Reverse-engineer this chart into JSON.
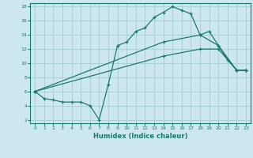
{
  "xlabel": "Humidex (Indice chaleur)",
  "bg_color": "#cce8ee",
  "grid_color": "#aacfd8",
  "line_color": "#1a7a6a",
  "xlim": [
    -0.5,
    23.5
  ],
  "ylim": [
    1.5,
    18.5
  ],
  "xticks": [
    0,
    1,
    2,
    3,
    4,
    5,
    6,
    7,
    8,
    9,
    10,
    11,
    12,
    13,
    14,
    15,
    16,
    17,
    18,
    19,
    20,
    21,
    22,
    23
  ],
  "yticks": [
    2,
    4,
    6,
    8,
    10,
    12,
    14,
    16,
    18
  ],
  "line1_x": [
    0,
    1,
    2,
    3,
    4,
    5,
    6,
    7,
    8,
    9,
    10,
    11,
    12,
    13,
    14,
    15,
    16,
    17,
    18,
    19,
    20,
    21,
    22,
    23
  ],
  "line1_y": [
    6,
    5,
    4.8,
    4.5,
    4.5,
    4.5,
    4,
    2,
    7,
    12.5,
    13,
    14.5,
    15,
    16.5,
    17.2,
    18,
    17.5,
    17,
    14,
    14.5,
    12.5,
    10.5,
    9,
    9
  ],
  "line2_x": [
    0,
    14,
    18,
    20,
    22,
    23
  ],
  "line2_y": [
    6,
    13,
    14,
    12.5,
    9,
    9
  ],
  "line3_x": [
    0,
    14,
    18,
    20,
    22,
    23
  ],
  "line3_y": [
    6,
    11,
    12,
    12,
    9,
    9
  ]
}
